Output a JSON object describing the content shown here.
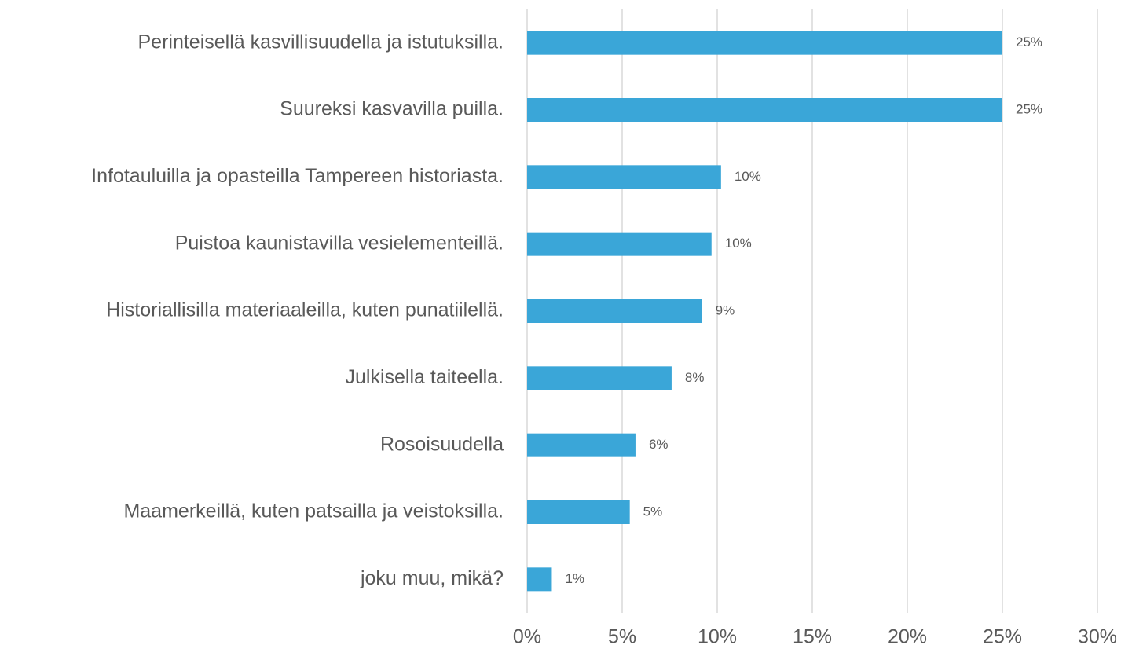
{
  "chart_data": {
    "type": "bar",
    "orientation": "horizontal",
    "categories": [
      "Perinteisellä kasvillisuudella ja istutuksilla.",
      "Suureksi kasvavilla puilla.",
      "Infotauluilla ja opasteilla Tampereen historiasta.",
      "Puistoa kaunistavilla vesielementeillä.",
      "Historiallisilla materiaaleilla, kuten punatiilellä.",
      "Julkisella taiteella.",
      "Rosoisuudella",
      "Maamerkeillä, kuten patsailla ja veistoksilla.",
      "joku muu, mikä?"
    ],
    "values": [
      25,
      25,
      10.2,
      9.7,
      9.2,
      7.6,
      5.7,
      5.4,
      1.3
    ],
    "value_labels": [
      "25%",
      "25%",
      "10%",
      "10%",
      "9%",
      "8%",
      "6%",
      "5%",
      "1%"
    ],
    "color": "#3aa6d8",
    "xlim": [
      0,
      30
    ],
    "xticks": [
      {
        "value": 0,
        "label": "0%"
      },
      {
        "value": 5,
        "label": "5%"
      },
      {
        "value": 10,
        "label": "10%"
      },
      {
        "value": 15,
        "label": "15%"
      },
      {
        "value": 20,
        "label": "20%"
      },
      {
        "value": 25,
        "label": "25%"
      },
      {
        "value": 30,
        "label": "30%"
      }
    ],
    "grid": true
  }
}
